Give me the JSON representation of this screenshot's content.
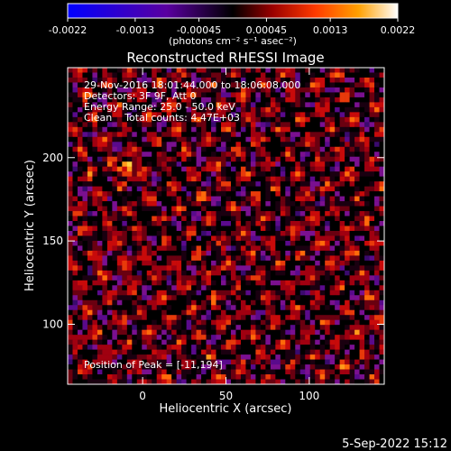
{
  "chart_data": {
    "type": "heatmap",
    "title": "Reconstructed RHESSI Image",
    "xlabel": "Heliocentric X (arcsec)",
    "ylabel": "Heliocentric Y (arcsec)",
    "xlim": [
      -45,
      145
    ],
    "ylim": [
      64,
      254
    ],
    "x_ticks": [
      0,
      50,
      100
    ],
    "y_ticks": [
      100,
      150,
      200
    ],
    "colorbar": {
      "range": [
        -0.0022,
        0.0022
      ],
      "ticks": [
        "-0.0022",
        "-0.0013",
        "-0.00045",
        "0.00045",
        "0.0013",
        "0.0022"
      ],
      "unit_label": "(photons cm⁻² s⁻¹ asec⁻²)",
      "colormap": [
        "#0000ff",
        "#6a00b4",
        "#000000",
        "#8c0000",
        "#ff3200",
        "#ff9600",
        "#ffdc00",
        "#ffffff"
      ]
    },
    "annotations": [
      "29-Nov-2016 18:01:44.000 to 18:06:08.000",
      "Detectors: 3F 9F, Att 0",
      "Energy Range: 25.0 - 50.0 keV",
      "Clean    Total counts: 4.47E+03"
    ],
    "peak_label": "Position of Peak = [-11,194]",
    "peak_position": [
      -11,
      194
    ],
    "grid": false,
    "legend": "none"
  },
  "footer": {
    "date": "5-Sep-2022 15:12"
  }
}
